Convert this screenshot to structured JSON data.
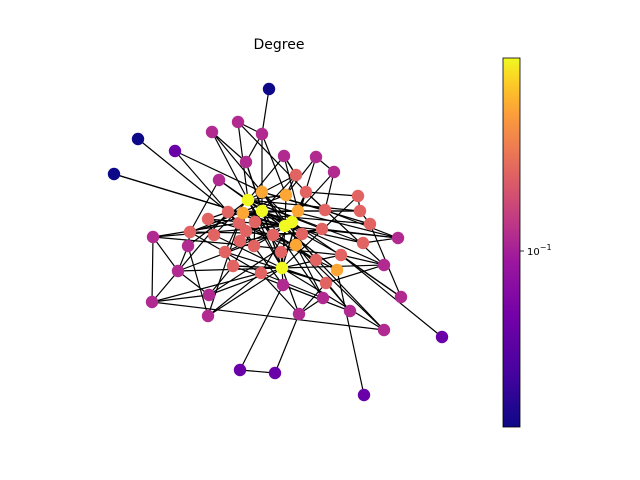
{
  "title": "Degree",
  "colorbar": {
    "colormap": "plasma",
    "scale": "log",
    "tick_label": "10^-1",
    "tick_value": 0.1,
    "vmin": 0.03,
    "vmax": 0.27
  },
  "node_color_scale": [
    "#0d0887",
    "#6a00a8",
    "#b12a90",
    "#e16462",
    "#fca636",
    "#f0f921"
  ]
}
